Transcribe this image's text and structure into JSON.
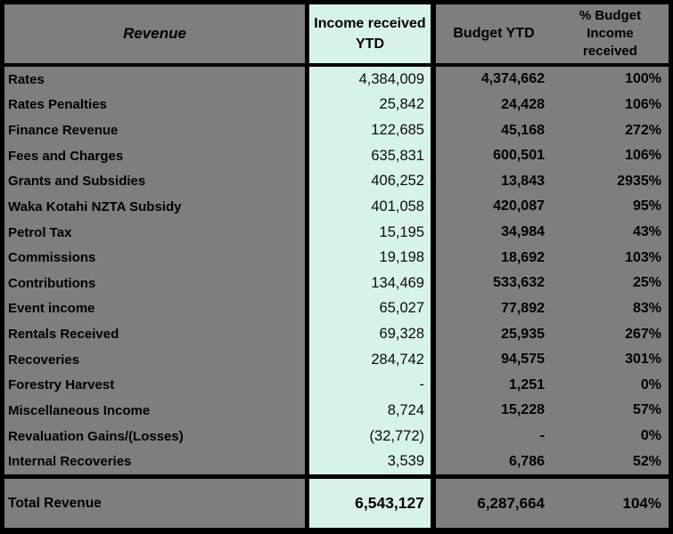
{
  "table": {
    "header": {
      "revenue": "Revenue",
      "income_received_ytd": "Income received YTD",
      "budget_ytd": "Budget YTD",
      "pct_budget_income_received": "% Budget Income received"
    },
    "rows": [
      {
        "label": "Rates",
        "income": "4,384,009",
        "budget": "4,374,662",
        "pct": "100%"
      },
      {
        "label": "Rates Penalties",
        "income": "25,842",
        "budget": "24,428",
        "pct": "106%"
      },
      {
        "label": "Finance Revenue",
        "income": "122,685",
        "budget": "45,168",
        "pct": "272%"
      },
      {
        "label": "Fees and Charges",
        "income": "635,831",
        "budget": "600,501",
        "pct": "106%"
      },
      {
        "label": "Grants and Subsidies",
        "income": "406,252",
        "budget": "13,843",
        "pct": "2935%"
      },
      {
        "label": "Waka Kotahi NZTA Subsidy",
        "income": "401,058",
        "budget": "420,087",
        "pct": "95%"
      },
      {
        "label": "Petrol Tax",
        "income": "15,195",
        "budget": "34,984",
        "pct": "43%"
      },
      {
        "label": "Commissions",
        "income": "19,198",
        "budget": "18,692",
        "pct": "103%"
      },
      {
        "label": "Contributions",
        "income": "134,469",
        "budget": "533,632",
        "pct": "25%"
      },
      {
        "label": "Event income",
        "income": "65,027",
        "budget": "77,892",
        "pct": "83%"
      },
      {
        "label": "Rentals Received",
        "income": "69,328",
        "budget": "25,935",
        "pct": "267%"
      },
      {
        "label": "Recoveries",
        "income": "284,742",
        "budget": "94,575",
        "pct": "301%"
      },
      {
        "label": "Forestry Harvest",
        "income": "-",
        "budget": "1,251",
        "pct": "0%"
      },
      {
        "label": "Miscellaneous Income",
        "income": "8,724",
        "budget": "15,228",
        "pct": "57%"
      },
      {
        "label": "Revaluation Gains/(Losses)",
        "income": "(32,772)",
        "budget": "-",
        "pct": "0%"
      },
      {
        "label": "Internal Recoveries",
        "income": "3,539",
        "budget": "6,786",
        "pct": "52%"
      }
    ],
    "total": {
      "label": "Total Revenue",
      "income": "6,543,127",
      "budget": "6,287,664",
      "pct": "104%"
    },
    "colors": {
      "background_gray": "#7e7e7e",
      "income_column_mint": "#d7f2eb",
      "border_black": "#000000"
    }
  }
}
